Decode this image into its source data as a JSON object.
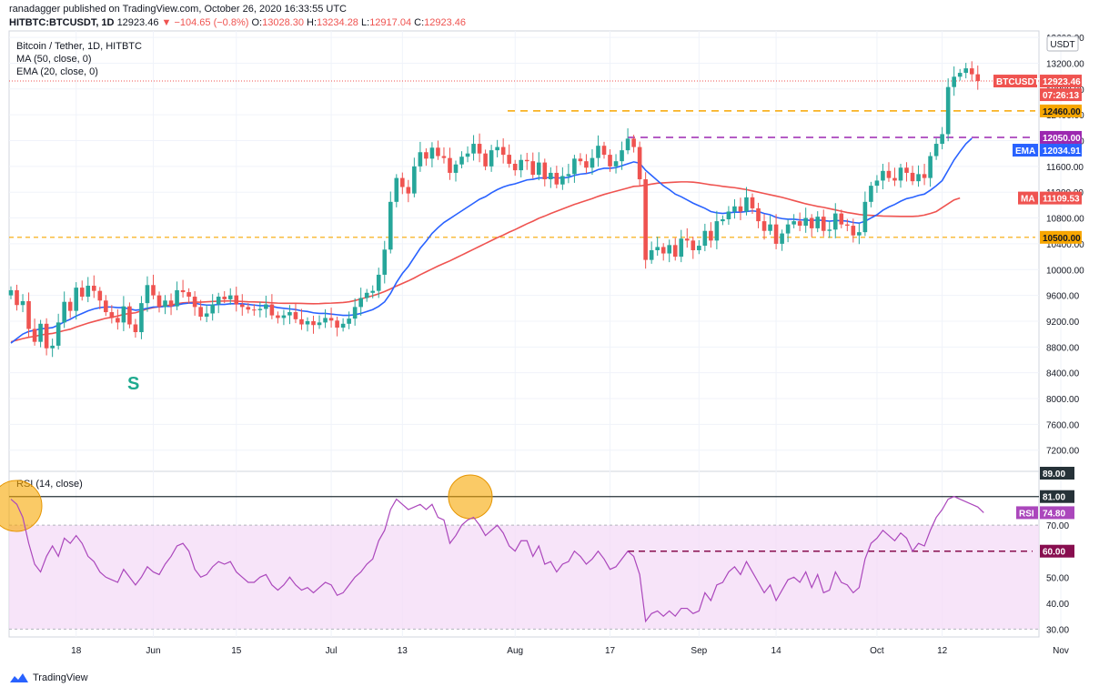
{
  "header": {
    "author": "ranadagger",
    "published_text": " published on TradingView.com, October 26, 2020 16:33:55 UTC",
    "symbol_line": "HITBTC:BTCUSDT, 1D",
    "last": "12923.46",
    "change": "▼ −104.65 (−0.8%)",
    "o_label": "O:",
    "o": "13028.30",
    "h_label": "H:",
    "h": "13234.28",
    "l_label": "L:",
    "l": "12917.04",
    "c_label": "C:",
    "c": "12923.46"
  },
  "legend": {
    "title": "Bitcoin / Tether, 1D, HITBTC",
    "ma": "MA (50, close, 0)",
    "ema": "EMA (20, close, 0)",
    "rsi": "RSI (14, close)"
  },
  "currency_badge": "USDT",
  "annotation_s": "S",
  "footer": {
    "brand": "TradingView"
  },
  "colors": {
    "up": "#26a69a",
    "down": "#ef5350",
    "ma": "#ef5350",
    "ema": "#2962ff",
    "rsi": "#ab47bc",
    "orange_level": "#f7a600",
    "purple_level": "#9c27b0",
    "rsi_band": "#f3d9f7",
    "dark_level": "#880e4f"
  },
  "chart_data": {
    "type": "candlestick",
    "title": "Bitcoin / Tether, 1D, HITBTC",
    "price_ylim": [
      6900,
      13700
    ],
    "price_ticks": [
      7200,
      7600,
      8000,
      8400,
      8800,
      9200,
      9600,
      10000,
      10400,
      10800,
      11200,
      11600,
      12000,
      12400,
      12800,
      13200,
      13600
    ],
    "x_ticks": [
      {
        "label": "18",
        "day": 0
      },
      {
        "label": "Jun",
        "day": 13
      },
      {
        "label": "15",
        "day": 27
      },
      {
        "label": "Jul",
        "day": 43
      },
      {
        "label": "13",
        "day": 55
      },
      {
        "label": "Aug",
        "day": 74
      },
      {
        "label": "17",
        "day": 90
      },
      {
        "label": "Sep",
        "day": 105
      },
      {
        "label": "14",
        "day": 118
      },
      {
        "label": "Oct",
        "day": 135
      },
      {
        "label": "12",
        "day": 146
      },
      {
        "label": "Nov",
        "day": 166
      }
    ],
    "closes": [
      9680,
      9450,
      9510,
      9080,
      8880,
      9160,
      8780,
      8820,
      9180,
      9500,
      9360,
      9720,
      9580,
      9750,
      9670,
      9520,
      9340,
      9250,
      9180,
      9430,
      9150,
      9030,
      9480,
      9760,
      9600,
      9420,
      9520,
      9430,
      9680,
      9650,
      9580,
      9420,
      9270,
      9320,
      9460,
      9580,
      9540,
      9600,
      9460,
      9420,
      9380,
      9370,
      9390,
      9460,
      9290,
      9250,
      9290,
      9340,
      9230,
      9150,
      9200,
      9140,
      9180,
      9250,
      9210,
      9100,
      9160,
      9240,
      9420,
      9560,
      9640,
      9670,
      9920,
      10310,
      11050,
      11420,
      11280,
      11180,
      11600,
      11820,
      11720,
      11890,
      11760,
      11730,
      11500,
      11630,
      11750,
      11800,
      11950,
      11800,
      11600,
      11850,
      11900,
      11780,
      11640,
      11540,
      11700,
      11680,
      11470,
      11660,
      11400,
      11500,
      11320,
      11450,
      11480,
      11720,
      11680,
      11580,
      11730,
      11920,
      11780,
      11600,
      11680,
      11850,
      12030,
      11900,
      11400,
      10150,
      10300,
      10350,
      10250,
      10380,
      10200,
      10480,
      10450,
      10300,
      10370,
      10600,
      10450,
      10750,
      10780,
      10900,
      10980,
      10900,
      11120,
      10950,
      10750,
      10600,
      10700,
      10400,
      10560,
      10700,
      10750,
      10680,
      10800,
      10640,
      10820,
      10600,
      10620,
      10870,
      10700,
      10680,
      10530,
      10580,
      11050,
      11300,
      11380,
      11530,
      11420,
      11380,
      11580,
      11500,
      11370,
      11480,
      11420,
      11760,
      11950,
      12100,
      12830,
      12990,
      13050,
      13120,
      13028,
      12923
    ],
    "ma50": [
      8880,
      8905,
      8930,
      8950,
      8965,
      8985,
      9000,
      9010,
      9030,
      9055,
      9075,
      9110,
      9140,
      9170,
      9195,
      9220,
      9245,
      9260,
      9280,
      9305,
      9320,
      9330,
      9360,
      9390,
      9410,
      9425,
      9440,
      9450,
      9470,
      9485,
      9490,
      9495,
      9495,
      9500,
      9505,
      9510,
      9512,
      9515,
      9510,
      9505,
      9500,
      9498,
      9495,
      9492,
      9485,
      9480,
      9478,
      9478,
      9478,
      9475,
      9472,
      9470,
      9472,
      9478,
      9480,
      9485,
      9490,
      9500,
      9520,
      9545,
      9570,
      9595,
      9625,
      9660,
      9700,
      9745,
      9785,
      9825,
      9870,
      9920,
      9965,
      10010,
      10055,
      10095,
      10135,
      10180,
      10225,
      10270,
      10315,
      10360,
      10405,
      10450,
      10495,
      10535,
      10580,
      10620,
      10665,
      10710,
      10750,
      10795,
      10830,
      10870,
      10905,
      10940,
      10975,
      11010,
      11040,
      11070,
      11100,
      11135,
      11165,
      11190,
      11215,
      11240,
      11265,
      11290,
      11295,
      11310,
      11325,
      11340,
      11345,
      11350,
      11355,
      11360,
      11360,
      11355,
      11345,
      11330,
      11315,
      11305,
      11290,
      11280,
      11270,
      11255,
      11240,
      11220,
      11200,
      11180,
      11160,
      11140,
      11120,
      11095,
      11070,
      11045,
      11020,
      11000,
      10980,
      10965,
      10945,
      10925,
      10905,
      10885,
      10870,
      10855,
      10845,
      10840,
      10835,
      10830,
      10828,
      10826,
      10825,
      10825,
      10825,
      10830,
      10845,
      10870,
      10900,
      10960,
      11020,
      11080,
      11110
    ],
    "ema20": [
      8860,
      8930,
      9000,
      9040,
      9060,
      9080,
      9090,
      9100,
      9140,
      9190,
      9230,
      9280,
      9320,
      9360,
      9390,
      9410,
      9420,
      9420,
      9410,
      9410,
      9390,
      9370,
      9380,
      9400,
      9420,
      9420,
      9430,
      9430,
      9450,
      9470,
      9480,
      9480,
      9460,
      9450,
      9450,
      9460,
      9460,
      9470,
      9470,
      9470,
      9460,
      9450,
      9440,
      9440,
      9430,
      9410,
      9400,
      9390,
      9380,
      9360,
      9350,
      9330,
      9320,
      9320,
      9310,
      9300,
      9290,
      9290,
      9300,
      9320,
      9350,
      9380,
      9430,
      9500,
      9630,
      9800,
      9940,
      10050,
      10190,
      10330,
      10440,
      10560,
      10650,
      10730,
      10790,
      10850,
      10910,
      10970,
      11030,
      11090,
      11130,
      11190,
      11240,
      11280,
      11310,
      11330,
      11360,
      11390,
      11400,
      11420,
      11420,
      11430,
      11420,
      11420,
      11430,
      11460,
      11480,
      11490,
      11510,
      11550,
      11570,
      11570,
      11580,
      11610,
      11640,
      11670,
      11650,
      11540,
      11460,
      11380,
      11300,
      11240,
      11170,
      11130,
      11080,
      11030,
      10990,
      10950,
      10900,
      10880,
      10870,
      10880,
      10890,
      10890,
      10900,
      10910,
      10900,
      10870,
      10850,
      10810,
      10790,
      10780,
      10780,
      10770,
      10770,
      10760,
      10770,
      10760,
      10750,
      10760,
      10760,
      10750,
      10730,
      10720,
      10750,
      10800,
      10850,
      10920,
      10970,
      11010,
      11060,
      11100,
      11120,
      11150,
      11170,
      11230,
      11300,
      11380,
      11540,
      11700,
      11830,
      11950,
      12035
    ]
  },
  "levels": {
    "current": {
      "label": "BTCUSDT",
      "value": "12923.46",
      "countdown": "07:26:13",
      "price": 12923.46
    },
    "orange_top": {
      "value": "12460.00",
      "price": 12460
    },
    "purple": {
      "value": "12050.00",
      "price": 12050
    },
    "ema_tag": {
      "label": "EMA",
      "value": "12034.91",
      "price": 12034.91
    },
    "ma_tag": {
      "label": "MA",
      "value": "11109.53",
      "price": 11109.53
    },
    "orange_bottom": {
      "value": "10500.00",
      "price": 10500
    }
  },
  "rsi_data": {
    "ylim": [
      27,
      90
    ],
    "ticks": [
      30,
      40,
      50,
      60,
      70,
      80
    ],
    "band": [
      30,
      70
    ],
    "values": [
      80,
      78,
      73,
      63,
      55,
      52,
      58,
      62,
      58,
      65,
      63,
      66,
      63,
      58,
      56,
      52,
      50,
      49,
      48,
      53,
      50,
      47,
      50,
      54,
      52,
      51,
      55,
      58,
      62,
      63,
      60,
      53,
      50,
      51,
      54,
      56,
      55,
      56,
      52,
      50,
      48,
      48,
      50,
      51,
      47,
      45,
      47,
      50,
      47,
      45,
      46,
      44,
      46,
      48,
      47,
      43,
      44,
      47,
      50,
      52,
      55,
      57,
      64,
      68,
      76,
      80,
      78,
      76,
      77,
      78,
      76,
      78,
      73,
      72,
      63,
      66,
      70,
      72,
      73,
      70,
      66,
      68,
      70,
      67,
      62,
      60,
      64,
      64,
      58,
      62,
      55,
      56,
      52,
      55,
      56,
      60,
      58,
      55,
      57,
      60,
      57,
      53,
      54,
      57,
      60,
      58,
      51,
      33,
      36,
      37,
      35,
      37,
      35,
      38,
      38,
      36,
      37,
      44,
      41,
      47,
      48,
      52,
      54,
      51,
      56,
      52,
      48,
      44,
      47,
      41,
      45,
      49,
      50,
      48,
      52,
      46,
      51,
      44,
      45,
      52,
      48,
      47,
      44,
      46,
      57,
      63,
      65,
      68,
      66,
      64,
      67,
      65,
      60,
      63,
      62,
      68,
      73,
      76,
      80,
      81,
      80,
      79,
      78,
      77,
      74.8
    ],
    "last_label": "RSI",
    "last_value": "74.80",
    "level_81": "81.00",
    "level_60": "60.00",
    "level_70": "70.00",
    "top_tick": "89.00"
  }
}
